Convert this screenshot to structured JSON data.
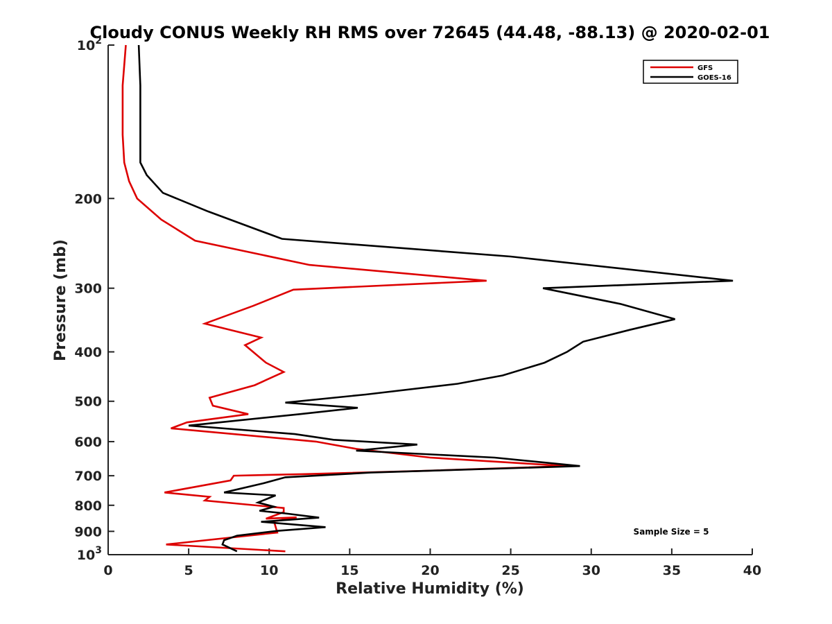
{
  "chart_data": {
    "type": "line",
    "title": "Cloudy CONUS Weekly RH RMS over 72645 (44.48, -88.13) @ 2020-02-01",
    "xlabel": "Relative Humidity (%)",
    "ylabel": "Pressure (mb)",
    "xlim": [
      0,
      40
    ],
    "ylim": [
      100,
      1000
    ],
    "y_scale": "log",
    "y_reversed": true,
    "grid": false,
    "legend_position": "top-right",
    "x_ticks": [
      "0",
      "5",
      "10",
      "15",
      "20",
      "25",
      "30",
      "35",
      "40"
    ],
    "y_ticks": [
      {
        "value": 100,
        "base": "10",
        "exp": "2",
        "label": ""
      },
      {
        "value": 200,
        "base": "",
        "exp": "",
        "label": "200"
      },
      {
        "value": 300,
        "base": "",
        "exp": "",
        "label": "300"
      },
      {
        "value": 400,
        "base": "",
        "exp": "",
        "label": "400"
      },
      {
        "value": 500,
        "base": "",
        "exp": "",
        "label": "500"
      },
      {
        "value": 600,
        "base": "",
        "exp": "",
        "label": "600"
      },
      {
        "value": 700,
        "base": "",
        "exp": "",
        "label": "700"
      },
      {
        "value": 800,
        "base": "",
        "exp": "",
        "label": "800"
      },
      {
        "value": 900,
        "base": "",
        "exp": "",
        "label": "900"
      },
      {
        "value": 1000,
        "base": "10",
        "exp": "3",
        "label": ""
      }
    ],
    "annotation": "Sample Size = 5",
    "series": [
      {
        "name": "GFS",
        "color": "#dd0000",
        "x": [
          1.1,
          0.9,
          0.9,
          1.0,
          1.3,
          1.8,
          3.3,
          5.4,
          12.5,
          23.5,
          11.5,
          9.0,
          6.0,
          9.5,
          8.5,
          9.8,
          10.9,
          9.1,
          6.3,
          6.5,
          8.7,
          4.9,
          3.9,
          12.9,
          15.4,
          20.0,
          28.5,
          19.5,
          12.0,
          7.8,
          7.6,
          3.5,
          6.3,
          6.0,
          10.9,
          10.9,
          9.8,
          11.7,
          10.3,
          10.5,
          3.6,
          11.0
        ],
        "y": [
          100,
          120,
          150,
          170,
          185,
          200,
          220,
          242,
          270,
          290,
          302,
          325,
          352,
          375,
          388,
          420,
          438,
          465,
          492,
          510,
          530,
          550,
          565,
          600,
          620,
          645,
          670,
          685,
          695,
          700,
          715,
          755,
          770,
          783,
          810,
          825,
          850,
          845,
          860,
          905,
          955,
          985
        ]
      },
      {
        "name": "GOES-16",
        "color": "#000000",
        "x": [
          1.9,
          2.0,
          2.0,
          2.0,
          2.4,
          3.4,
          6.2,
          10.8,
          25.0,
          38.8,
          27.0,
          31.8,
          35.2,
          32.4,
          29.5,
          28.5,
          27.1,
          24.5,
          21.7,
          16.0,
          11.0,
          15.5,
          11.9,
          5.0,
          11.6,
          14.0,
          19.2,
          15.4,
          24.0,
          29.3,
          16.3,
          11.0,
          9.6,
          7.2,
          10.4,
          9.3,
          10.3,
          9.4,
          11.0,
          13.1,
          9.5,
          13.5,
          10.5,
          8.0,
          7.2,
          7.1,
          8.0
        ],
        "y": [
          100,
          120,
          150,
          170,
          180,
          195,
          212,
          240,
          260,
          290,
          300,
          322,
          345,
          362,
          382,
          400,
          420,
          445,
          462,
          485,
          503,
          515,
          530,
          558,
          580,
          595,
          608,
          625,
          645,
          670,
          690,
          705,
          725,
          755,
          765,
          790,
          805,
          820,
          830,
          846,
          862,
          883,
          898,
          918,
          937,
          955,
          985
        ]
      }
    ]
  }
}
